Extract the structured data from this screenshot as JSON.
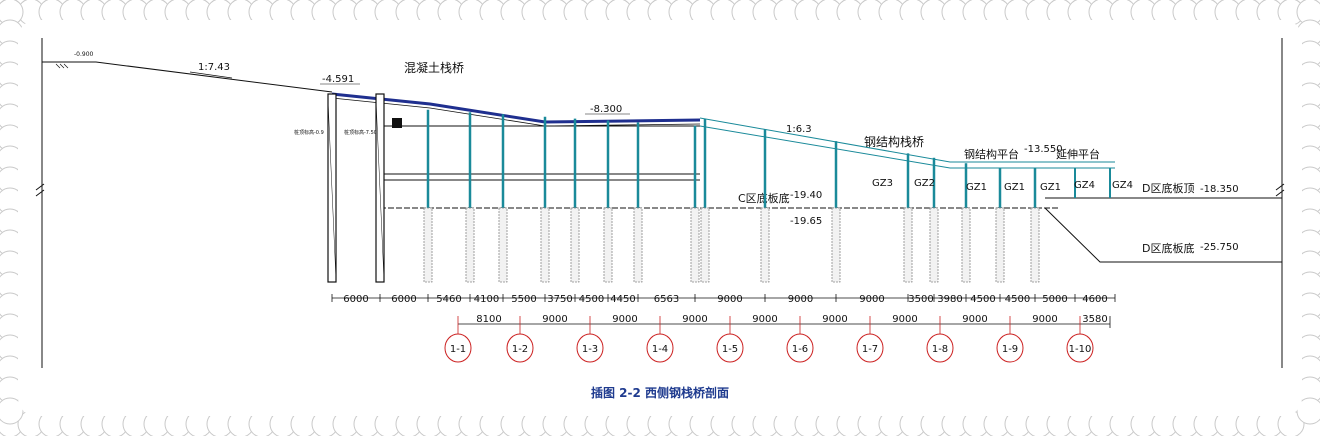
{
  "caption": "插图 2-2 西侧钢栈桥剖面",
  "labels": {
    "top_elev": "-0.900",
    "slope_upper": "1:7.43",
    "elev_4591": "-4.591",
    "concrete_bridge": "混凝土栈桥",
    "elev_8300": "-8.300",
    "slope_lower": "1:6.3",
    "steel_bridge": "钢结构栈桥",
    "steel_platform": "钢结构平台",
    "elev_13550": "-13.550",
    "extension_platform": "延伸平台",
    "c_floor": "C区底板底",
    "elev_1940": "-19.40",
    "elev_1965": "-19.65",
    "d_floor_top": "D区底板顶",
    "elev_18350": "-18.350",
    "d_floor_bottom": "D区底板底",
    "elev_25750": "-25.750",
    "left_note1": "桩顶标高-0.9",
    "left_note2": "桩顶标高-7.50",
    "column_gz3": "GZ3",
    "column_gz2": "GZ2",
    "column_gz1a": "GZ1",
    "column_gz1b": "GZ1",
    "column_gz1c": "GZ1",
    "column_gz4a": "GZ4",
    "column_gz4b": "GZ4"
  },
  "dims_upper": [
    "6000",
    "6000",
    "5460",
    "4100",
    "5500",
    "3750",
    "4500",
    "4450",
    "6563",
    "9000",
    "9000",
    "9000",
    "3500",
    "3980",
    "4500",
    "4500",
    "5000",
    "4600"
  ],
  "dims_lower": [
    "8100",
    "9000",
    "9000",
    "9000",
    "9000",
    "9000",
    "9000",
    "9000",
    "9000",
    "3580"
  ],
  "axes": [
    "1-1",
    "1-2",
    "1-3",
    "1-4",
    "1-5",
    "1-6",
    "1-7",
    "1-8",
    "1-9",
    "1-10"
  ],
  "colors": {
    "outline": "#111111",
    "pile": "#1a8a9a",
    "deck": "#1f2f8f",
    "caption": "#1f3b8f",
    "axis": "#cc2222"
  }
}
